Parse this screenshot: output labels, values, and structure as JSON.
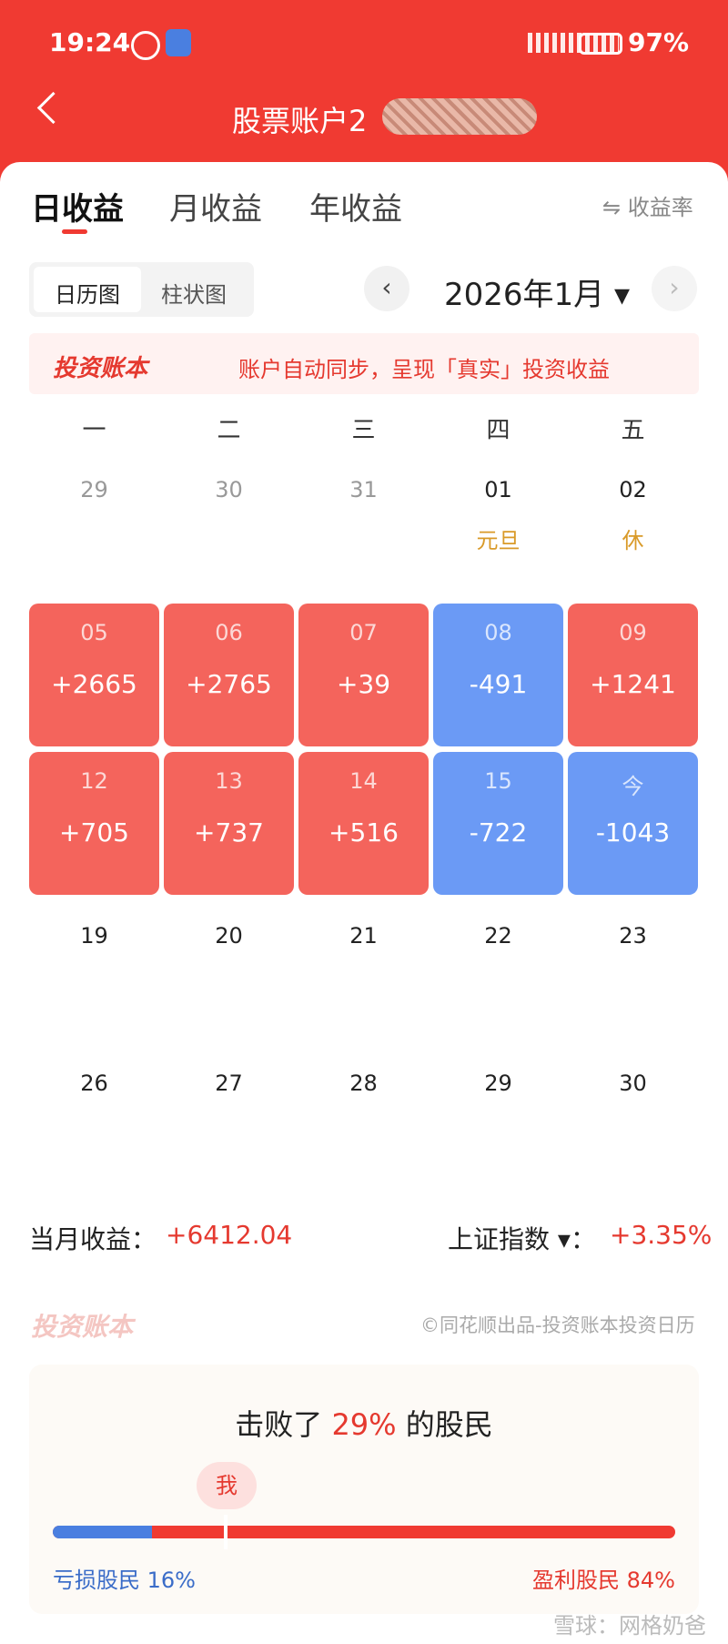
{
  "status_bar": {
    "time": "19:24",
    "battery": "97%"
  },
  "header": {
    "title": "股票账户2"
  },
  "tabs": [
    "日收益",
    "月收益",
    "年收益"
  ],
  "rate_toggle": "收益率",
  "view_toggle": [
    "日历图",
    "柱状图"
  ],
  "month": "2026年1月",
  "banner": {
    "brand": "投资账本",
    "text": "账户自动同步，呈现「真实」投资收益"
  },
  "weekdays": [
    "一",
    "二",
    "三",
    "四",
    "五"
  ],
  "weeks": [
    [
      {
        "day": "29"
      },
      {
        "day": "30"
      },
      {
        "day": "31"
      },
      {
        "day": "01",
        "note": "元旦"
      },
      {
        "day": "02",
        "note": "休"
      }
    ],
    [
      {
        "day": "05",
        "pnl": "+2665"
      },
      {
        "day": "06",
        "pnl": "+2765"
      },
      {
        "day": "07",
        "pnl": "+39"
      },
      {
        "day": "08",
        "pnl": "-491"
      },
      {
        "day": "09",
        "pnl": "+1241"
      }
    ],
    [
      {
        "day": "12",
        "pnl": "+705"
      },
      {
        "day": "13",
        "pnl": "+737"
      },
      {
        "day": "14",
        "pnl": "+516"
      },
      {
        "day": "15",
        "pnl": "-722"
      },
      {
        "day": "今",
        "pnl": "-1043"
      }
    ],
    [
      {
        "day": "19"
      },
      {
        "day": "20"
      },
      {
        "day": "21"
      },
      {
        "day": "22"
      },
      {
        "day": "23"
      }
    ],
    [
      {
        "day": "26"
      },
      {
        "day": "27"
      },
      {
        "day": "28"
      },
      {
        "day": "29"
      },
      {
        "day": "30"
      }
    ]
  ],
  "summary": {
    "label": "当月收益：",
    "value": "+6412.04",
    "index_label": "上证指数",
    "colon": "：",
    "index_value": "+3.35%"
  },
  "footer": {
    "brand": "投资账本",
    "credit": "©同花顺出品-投资账本投资日历"
  },
  "rank": {
    "prefix": "击败了",
    "percent": "29%",
    "suffix": "的股民",
    "me": "我",
    "loss": "亏损股民 16%",
    "profit": "盈利股民 84%"
  },
  "watermark": "雪球：网格奶爸"
}
